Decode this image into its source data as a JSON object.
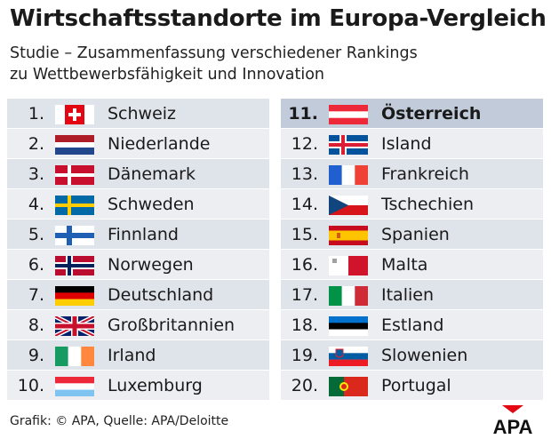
{
  "title": "Wirtschaftsstandorte im Europa-Vergleich",
  "subtitle_line1": "Studie – Zusammenfassung verschiedener Rankings",
  "subtitle_line2": "zu Wettbewerbsfähigkeit und Innovation",
  "left_rows": [
    {
      "rank": "1.",
      "country": "Schweiz",
      "flag": "switzerland-flag"
    },
    {
      "rank": "2.",
      "country": "Niederlande",
      "flag": "netherlands-flag"
    },
    {
      "rank": "3.",
      "country": "Dänemark",
      "flag": "denmark-flag"
    },
    {
      "rank": "4.",
      "country": "Schweden",
      "flag": "sweden-flag"
    },
    {
      "rank": "5.",
      "country": "Finnland",
      "flag": "finland-flag"
    },
    {
      "rank": "6.",
      "country": "Norwegen",
      "flag": "norway-flag"
    },
    {
      "rank": "7.",
      "country": "Deutschland",
      "flag": "germany-flag"
    },
    {
      "rank": "8.",
      "country": "Großbritannien",
      "flag": "uk-flag"
    },
    {
      "rank": "9.",
      "country": "Irland",
      "flag": "ireland-flag"
    },
    {
      "rank": "10.",
      "country": "Luxemburg",
      "flag": "luxembourg-flag"
    }
  ],
  "right_rows": [
    {
      "rank": "11.",
      "country": "Österreich",
      "flag": "austria-flag",
      "highlighted": true
    },
    {
      "rank": "12.",
      "country": "Island",
      "flag": "iceland-flag"
    },
    {
      "rank": "13.",
      "country": "Frankreich",
      "flag": "france-flag"
    },
    {
      "rank": "14.",
      "country": "Tschechien",
      "flag": "czechia-flag"
    },
    {
      "rank": "15.",
      "country": "Spanien",
      "flag": "spain-flag"
    },
    {
      "rank": "16.",
      "country": "Malta",
      "flag": "malta-flag"
    },
    {
      "rank": "17.",
      "country": "Italien",
      "flag": "italy-flag"
    },
    {
      "rank": "18.",
      "country": "Estland",
      "flag": "estonia-flag"
    },
    {
      "rank": "19.",
      "country": "Slowenien",
      "flag": "slovenia-flag"
    },
    {
      "rank": "20.",
      "country": "Portugal",
      "flag": "portugal-flag"
    }
  ],
  "footer": "Grafik: © APA, Quelle: APA/Deloitte",
  "logo_text": "APA",
  "colors": {
    "row": "#dfe3ea",
    "row_alt": "#eceef2",
    "highlight": "#c2cbd9",
    "logo_red": "#e30613"
  }
}
